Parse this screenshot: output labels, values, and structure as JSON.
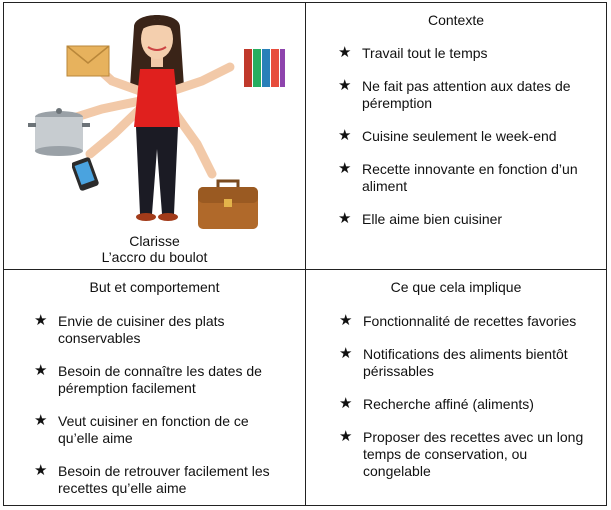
{
  "persona": {
    "name": "Clarisse",
    "subtitle": "L’accro du boulot"
  },
  "contexte": {
    "title": "Contexte",
    "items": [
      "Travail tout le temps",
      "Ne fait pas attention aux dates de péremption",
      "Cuisine seulement le week-end",
      "Recette innovante en fonction d’un aliment",
      "Elle aime bien cuisiner"
    ]
  },
  "but": {
    "title": "But et comportement",
    "items": [
      "Envie de cuisiner des plats conservables",
      "Besoin de connaître les dates de péremption facilement",
      "Veut cuisiner en fonction de ce qu’elle aime",
      "Besoin de retrouver facilement les recettes qu’elle aime"
    ]
  },
  "implique": {
    "title": "Ce que cela implique",
    "items": [
      "Fonctionnalité de recettes favories",
      "Notifications des aliments bientôt périssables",
      "Recherche affiné (aliments)",
      "Proposer des recettes avec un long temps de conservation, ou congelable"
    ]
  },
  "bullet_glyph": "★",
  "illustration_icons": [
    "envelope-icon",
    "books-icon",
    "cooking-pot-icon",
    "smartphone-icon",
    "briefcase-icon"
  ]
}
